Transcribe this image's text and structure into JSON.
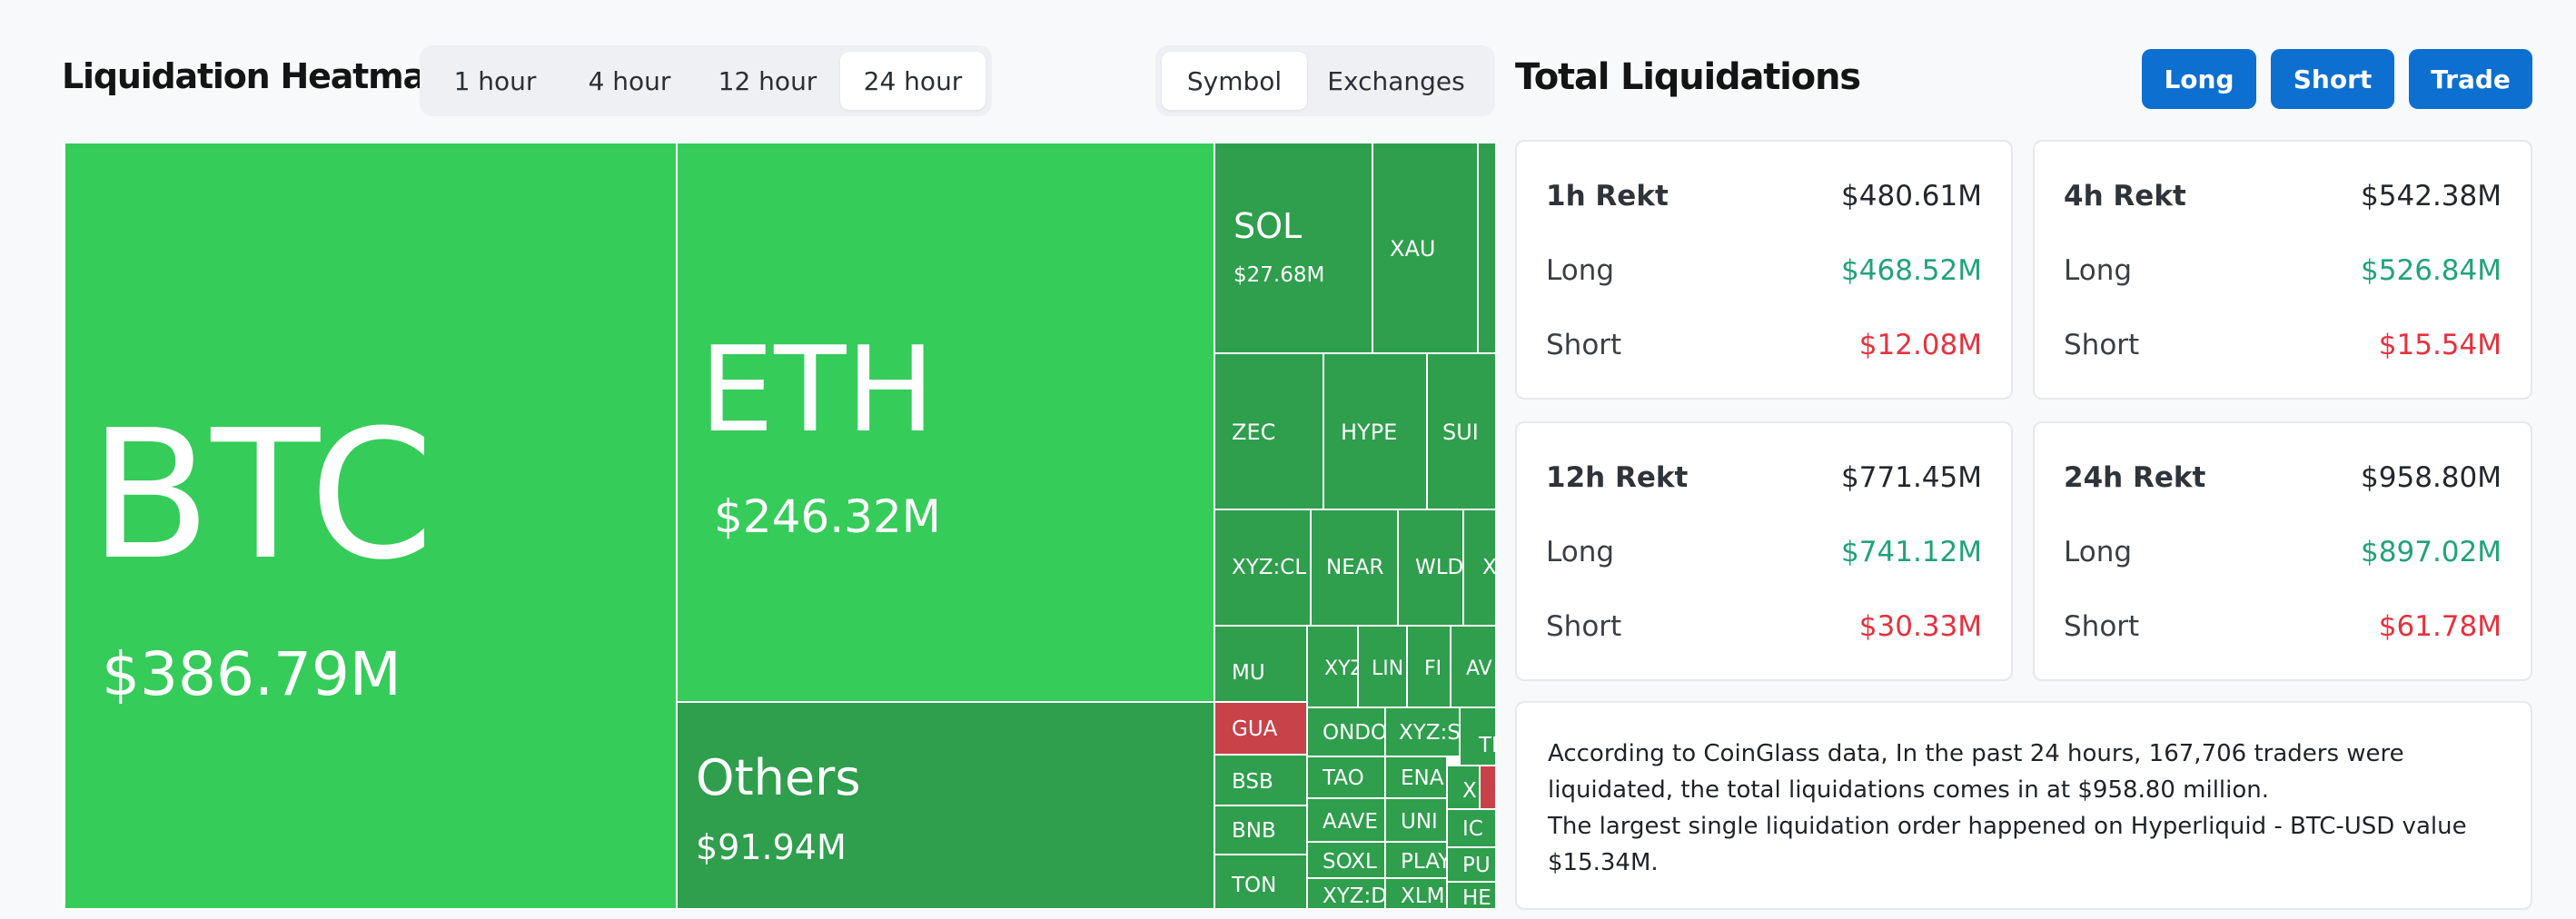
{
  "heatmap": {
    "title": "Liquidation Heatmap",
    "timeframes": [
      "1 hour",
      "4 hour",
      "12 hour",
      "24 hour"
    ],
    "active_timeframe": "24 hour",
    "views": [
      "Symbol",
      "Exchanges"
    ],
    "active_view": "Symbol",
    "cells": {
      "btc": {
        "symbol": "BTC",
        "value": "$386.79M"
      },
      "eth": {
        "symbol": "ETH",
        "value": "$246.32M"
      },
      "others": {
        "symbol": "Others",
        "value": "$91.94M"
      },
      "sol": {
        "symbol": "SOL",
        "value": "$27.68M"
      },
      "xau": "XAU",
      "zec": "ZEC",
      "hype": "HYPE",
      "sui": "SUI",
      "xyzcl": "XYZ:CL",
      "near": "NEAR",
      "wld": "WLD",
      "x1": "X",
      "mu": "MU",
      "xyz2": "XYZ",
      "lin": "LIN",
      "fi": "FI",
      "av": "AV",
      "gua": "GUA",
      "ondo": "ONDO",
      "xyzs": "XYZ:S",
      "tr": "TR",
      "bsb": "BSB",
      "tao": "TAO",
      "ena": "ENA",
      "x2": "X",
      "bnb": "BNB",
      "aave": "AAVE",
      "uni": "UNI",
      "ic": "IC",
      "soxl": "SOXL",
      "play": "PLAY",
      "pu": "PU",
      "ton": "TON",
      "xyzd": "XYZ:D",
      "xlm": "XLM",
      "he": "HE"
    }
  },
  "total": {
    "title": "Total Liquidations",
    "buttons": [
      "Long",
      "Short",
      "Trade"
    ],
    "cards": [
      {
        "period": "1h Rekt",
        "total": "$480.61M",
        "long_label": "Long",
        "long": "$468.52M",
        "short_label": "Short",
        "short": "$12.08M"
      },
      {
        "period": "4h Rekt",
        "total": "$542.38M",
        "long_label": "Long",
        "long": "$526.84M",
        "short_label": "Short",
        "short": "$15.54M"
      },
      {
        "period": "12h Rekt",
        "total": "$771.45M",
        "long_label": "Long",
        "long": "$741.12M",
        "short_label": "Short",
        "short": "$30.33M"
      },
      {
        "period": "24h Rekt",
        "total": "$958.80M",
        "long_label": "Long",
        "long": "$897.02M",
        "short_label": "Short",
        "short": "$61.78M"
      }
    ],
    "summary_line1": "According to CoinGlass data, In the past 24 hours, 167,706 traders were liquidated, the total liquidations comes in at $958.80 million.",
    "summary_line2": "The largest single liquidation order happened on Hyperliquid - BTC-USD value $15.34M."
  },
  "colors": {
    "accent": "#0d6fd0",
    "heat_large": "#35cc5a",
    "heat_medium": "#2f9e4d",
    "heat_short": "#c8424a",
    "positive": "#21a37a",
    "negative": "#e5323f"
  }
}
